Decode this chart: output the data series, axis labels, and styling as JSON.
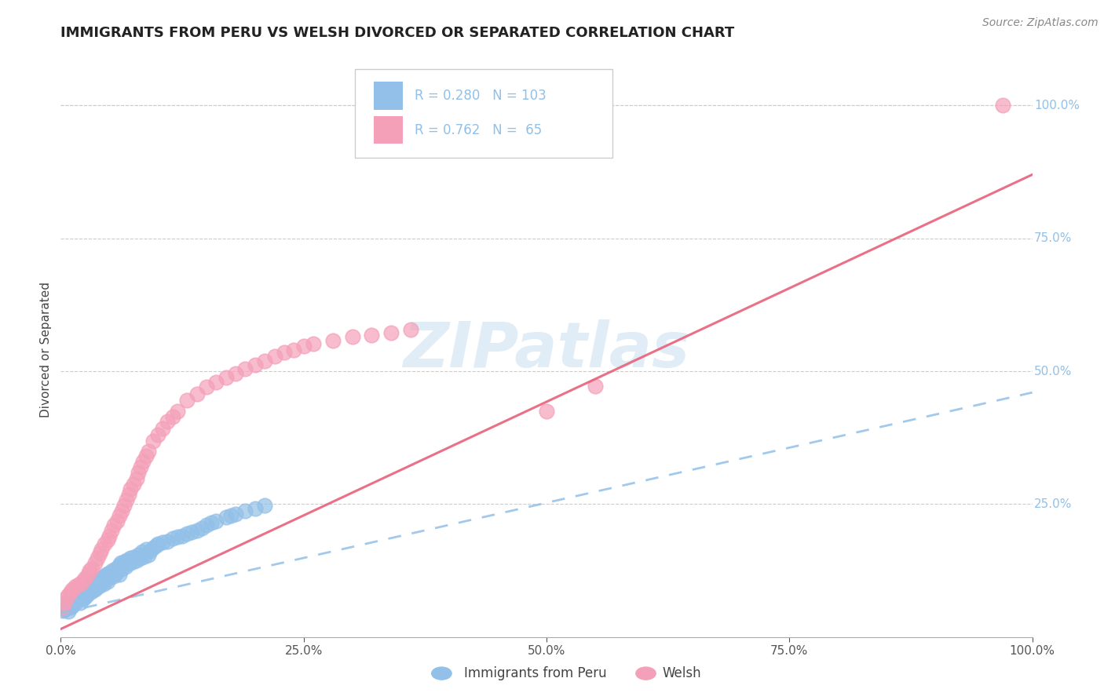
{
  "title": "IMMIGRANTS FROM PERU VS WELSH DIVORCED OR SEPARATED CORRELATION CHART",
  "source": "Source: ZipAtlas.com",
  "ylabel": "Divorced or Separated",
  "xlim": [
    0,
    1.0
  ],
  "ylim": [
    0.0,
    1.08
  ],
  "xtick_labels": [
    "0.0%",
    "25.0%",
    "50.0%",
    "75.0%",
    "100.0%"
  ],
  "xtick_vals": [
    0.0,
    0.25,
    0.5,
    0.75,
    1.0
  ],
  "ytick_vals": [
    0.25,
    0.5,
    0.75,
    1.0
  ],
  "ytick_labels": [
    "25.0%",
    "50.0%",
    "75.0%",
    "100.0%"
  ],
  "legend_entries": [
    {
      "label": "Immigrants from Peru",
      "color": "#92c0e8",
      "R": 0.28,
      "N": 103
    },
    {
      "label": "Welsh",
      "color": "#f4a0b8",
      "R": 0.762,
      "N": 65
    }
  ],
  "blue_scatter": {
    "x": [
      0.002,
      0.003,
      0.004,
      0.005,
      0.006,
      0.007,
      0.008,
      0.009,
      0.01,
      0.01,
      0.01,
      0.011,
      0.012,
      0.013,
      0.014,
      0.015,
      0.015,
      0.016,
      0.017,
      0.018,
      0.019,
      0.02,
      0.02,
      0.021,
      0.022,
      0.023,
      0.024,
      0.025,
      0.025,
      0.026,
      0.027,
      0.028,
      0.029,
      0.03,
      0.03,
      0.031,
      0.032,
      0.033,
      0.034,
      0.035,
      0.035,
      0.036,
      0.037,
      0.038,
      0.039,
      0.04,
      0.04,
      0.042,
      0.043,
      0.044,
      0.045,
      0.046,
      0.047,
      0.048,
      0.05,
      0.05,
      0.052,
      0.053,
      0.055,
      0.056,
      0.057,
      0.058,
      0.059,
      0.06,
      0.06,
      0.062,
      0.063,
      0.065,
      0.067,
      0.068,
      0.07,
      0.072,
      0.074,
      0.075,
      0.078,
      0.08,
      0.082,
      0.084,
      0.086,
      0.088,
      0.09,
      0.092,
      0.095,
      0.098,
      0.1,
      0.105,
      0.11,
      0.115,
      0.12,
      0.125,
      0.13,
      0.135,
      0.14,
      0.145,
      0.15,
      0.155,
      0.16,
      0.17,
      0.175,
      0.18,
      0.19,
      0.2,
      0.21
    ],
    "y": [
      0.05,
      0.055,
      0.052,
      0.058,
      0.06,
      0.065,
      0.048,
      0.07,
      0.075,
      0.055,
      0.08,
      0.062,
      0.058,
      0.068,
      0.072,
      0.065,
      0.078,
      0.08,
      0.07,
      0.075,
      0.082,
      0.085,
      0.065,
      0.088,
      0.078,
      0.072,
      0.09,
      0.085,
      0.075,
      0.092,
      0.08,
      0.095,
      0.088,
      0.092,
      0.1,
      0.085,
      0.095,
      0.088,
      0.098,
      0.09,
      0.105,
      0.092,
      0.1,
      0.108,
      0.095,
      0.11,
      0.098,
      0.105,
      0.112,
      0.1,
      0.115,
      0.108,
      0.118,
      0.105,
      0.12,
      0.112,
      0.118,
      0.125,
      0.115,
      0.128,
      0.12,
      0.13,
      0.125,
      0.135,
      0.118,
      0.14,
      0.128,
      0.142,
      0.132,
      0.145,
      0.138,
      0.148,
      0.142,
      0.15,
      0.145,
      0.155,
      0.148,
      0.16,
      0.152,
      0.165,
      0.155,
      0.162,
      0.168,
      0.172,
      0.175,
      0.178,
      0.18,
      0.185,
      0.188,
      0.19,
      0.195,
      0.198,
      0.2,
      0.205,
      0.21,
      0.215,
      0.218,
      0.225,
      0.228,
      0.232,
      0.238,
      0.242,
      0.248
    ]
  },
  "pink_scatter": {
    "x": [
      0.002,
      0.004,
      0.006,
      0.008,
      0.01,
      0.012,
      0.015,
      0.018,
      0.02,
      0.022,
      0.025,
      0.028,
      0.03,
      0.032,
      0.035,
      0.038,
      0.04,
      0.042,
      0.045,
      0.048,
      0.05,
      0.052,
      0.055,
      0.058,
      0.06,
      0.063,
      0.065,
      0.068,
      0.07,
      0.072,
      0.075,
      0.078,
      0.08,
      0.082,
      0.085,
      0.088,
      0.09,
      0.095,
      0.1,
      0.105,
      0.11,
      0.115,
      0.12,
      0.13,
      0.14,
      0.15,
      0.16,
      0.17,
      0.18,
      0.19,
      0.2,
      0.21,
      0.22,
      0.23,
      0.24,
      0.25,
      0.26,
      0.28,
      0.3,
      0.32,
      0.34,
      0.36,
      0.97,
      0.5,
      0.55
    ],
    "y": [
      0.055,
      0.065,
      0.075,
      0.08,
      0.085,
      0.09,
      0.095,
      0.098,
      0.1,
      0.105,
      0.11,
      0.118,
      0.125,
      0.13,
      0.14,
      0.148,
      0.158,
      0.165,
      0.175,
      0.182,
      0.19,
      0.2,
      0.21,
      0.218,
      0.228,
      0.238,
      0.248,
      0.258,
      0.268,
      0.278,
      0.288,
      0.298,
      0.31,
      0.32,
      0.33,
      0.34,
      0.35,
      0.368,
      0.38,
      0.392,
      0.405,
      0.415,
      0.425,
      0.445,
      0.458,
      0.47,
      0.48,
      0.488,
      0.495,
      0.505,
      0.512,
      0.52,
      0.528,
      0.535,
      0.54,
      0.548,
      0.552,
      0.558,
      0.565,
      0.568,
      0.572,
      0.578,
      1.0,
      0.425,
      0.472
    ]
  },
  "blue_line": {
    "x0": 0.0,
    "y0": 0.045,
    "x1": 1.0,
    "y1": 0.46
  },
  "pink_line": {
    "x0": 0.0,
    "y0": 0.015,
    "x1": 1.0,
    "y1": 0.87
  },
  "watermark": "ZIPatlas",
  "watermark_color": "#cce0f0",
  "title_fontsize": 13,
  "tick_fontsize": 11,
  "axis_label_fontsize": 11,
  "source_fontsize": 10
}
